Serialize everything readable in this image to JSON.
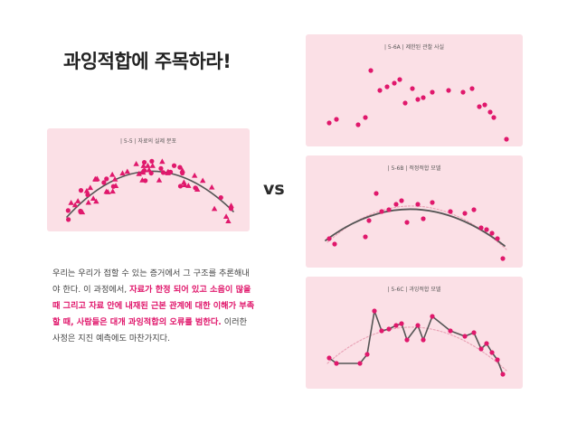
{
  "title": "과잉적합에 주목하라!",
  "vs_label": "vs",
  "colors": {
    "point": "#e0186c",
    "curve": "#555555",
    "dotted_curve": "#e8a0b4",
    "panel_bg": "#fbe0e6",
    "highlight": "#e0186c"
  },
  "panels": {
    "p55": {
      "label": "| 5-5 | 자료의 실제 분포"
    },
    "p56a": {
      "label": "| 5-6A | 제한된 관찰 사실"
    },
    "p56b": {
      "label": "| 5-6B | 적정적합 모델"
    },
    "p56c": {
      "label": "| 5-6C | 과잉적합 모델"
    }
  },
  "body": {
    "line1": "우리는 우리가 접할 수 있는 증거에서 그 구조를 추론해내",
    "line2_plain": "야 한다. 이 과정에서, ",
    "line2_hl": "자료가 한정 되어 있고 소음이 많을",
    "line3_hl": "때 그리고 자료 안에 내재된 근본 관계에 대한 이해가 부족",
    "line4_hl": "할 때, 사람들은 대개 과잉적합의 오류를 범한다.",
    "line4_plain": " 이러한",
    "line5": "사정은 지진 예측에도 마찬가지다."
  }
}
